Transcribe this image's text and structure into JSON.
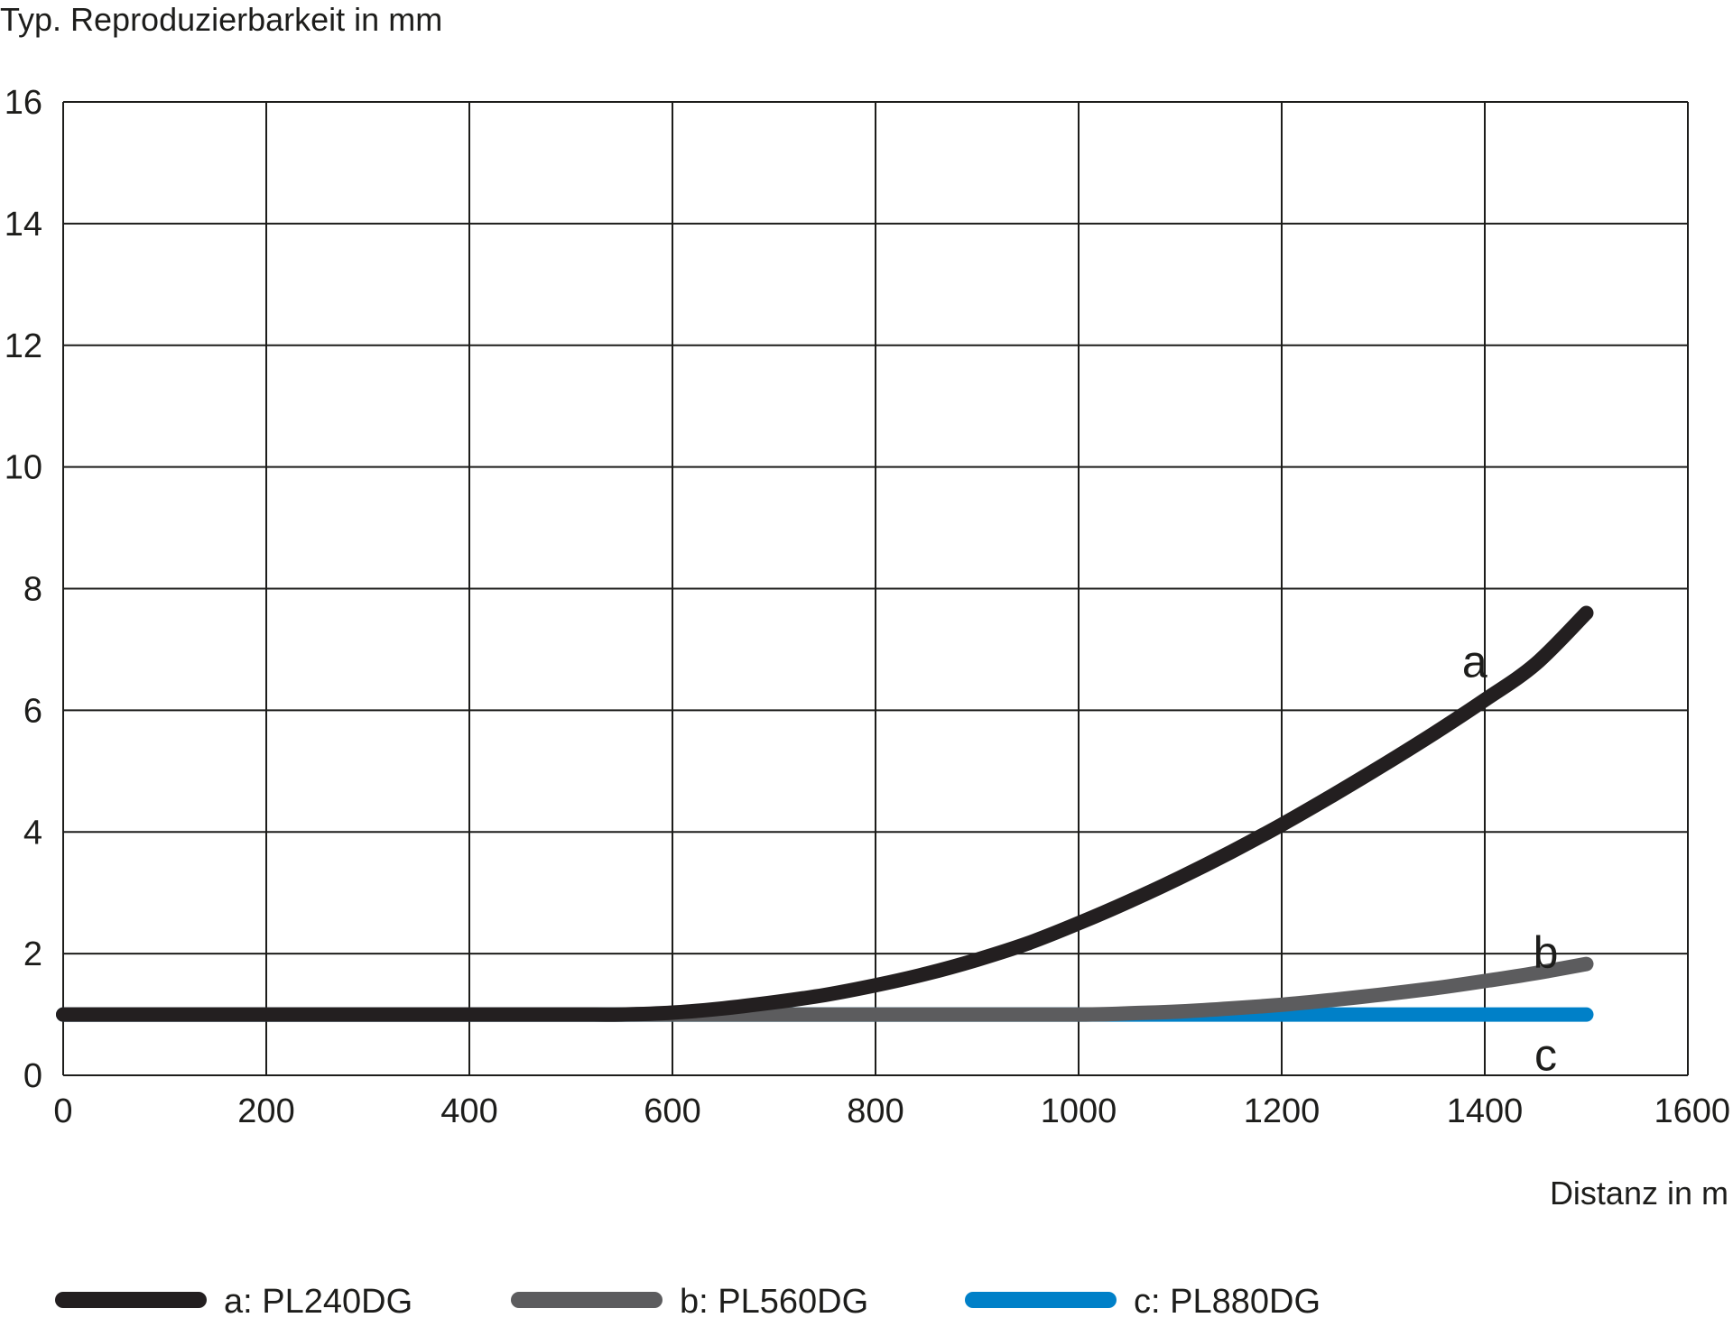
{
  "chart_data": {
    "type": "line",
    "ylabel": "Typ. Reproduzierbarkeit in mm",
    "xlabel": "Distanz in m",
    "xlim": [
      0,
      1600
    ],
    "ylim": [
      0,
      16
    ],
    "x_ticks": [
      0,
      200,
      400,
      600,
      800,
      1000,
      1200,
      1400,
      1600
    ],
    "y_ticks": [
      0,
      2,
      4,
      6,
      8,
      10,
      12,
      14,
      16
    ],
    "grid": true,
    "legend_position": "bottom",
    "series": [
      {
        "name": "a: PL240DG",
        "label": "a",
        "color": "#231f20",
        "x": [
          0,
          100,
          200,
          300,
          400,
          500,
          550,
          600,
          650,
          700,
          750,
          800,
          850,
          900,
          950,
          1000,
          1050,
          1100,
          1150,
          1200,
          1250,
          1300,
          1350,
          1400,
          1450,
          1500
        ],
        "y": [
          1.0,
          1.0,
          1.0,
          1.0,
          1.0,
          1.0,
          1.0,
          1.03,
          1.1,
          1.2,
          1.32,
          1.48,
          1.67,
          1.9,
          2.17,
          2.5,
          2.86,
          3.25,
          3.67,
          4.12,
          4.6,
          5.1,
          5.62,
          6.17,
          6.76,
          7.6
        ]
      },
      {
        "name": "b: PL560DG",
        "label": "b",
        "color": "#5c5c5e",
        "x": [
          0,
          200,
          400,
          600,
          800,
          1000,
          1050,
          1100,
          1150,
          1200,
          1250,
          1300,
          1350,
          1400,
          1450,
          1500
        ],
        "y": [
          1.0,
          1.0,
          1.0,
          1.0,
          1.0,
          1.0,
          1.02,
          1.05,
          1.1,
          1.16,
          1.24,
          1.33,
          1.43,
          1.55,
          1.68,
          1.83
        ]
      },
      {
        "name": "c: PL880DG",
        "label": "c",
        "color": "#0080c8",
        "x": [
          0,
          1500
        ],
        "y": [
          1.0,
          1.0
        ]
      }
    ]
  }
}
